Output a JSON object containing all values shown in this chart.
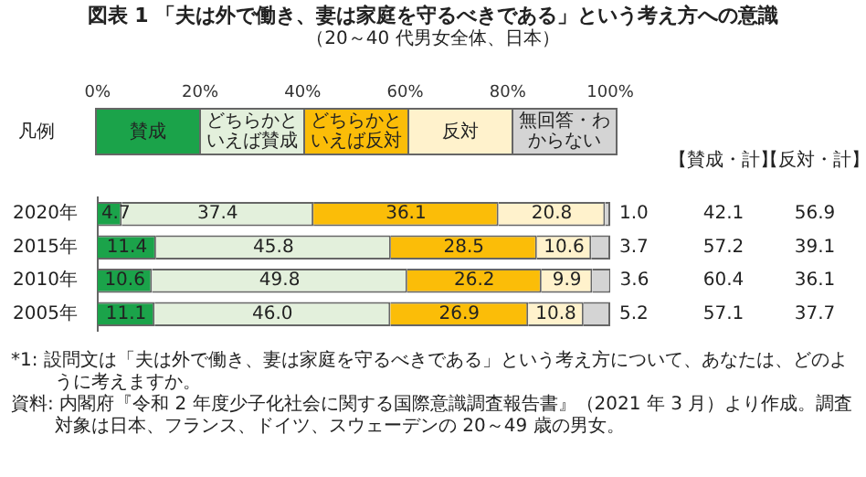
{
  "chart_data": {
    "type": "bar",
    "orientation": "horizontal",
    "stacked": true,
    "title": "図表 1 「夫は外で働き、妻は家庭を守るべきである」という考え方への意識",
    "subtitle": "（20～40 代男女全体、日本）",
    "categories": [
      "2020年",
      "2015年",
      "2010年",
      "2005年"
    ],
    "xlim": [
      0,
      100
    ],
    "xticks": [
      {
        "value": 0,
        "label": "0%"
      },
      {
        "value": 20,
        "label": "20%"
      },
      {
        "value": 40,
        "label": "40%"
      },
      {
        "value": 60,
        "label": "60%"
      },
      {
        "value": 80,
        "label": "80%"
      },
      {
        "value": 100,
        "label": "100%"
      }
    ],
    "legend": "top",
    "legend_title": "凡例",
    "series": [
      {
        "name": "賛成",
        "color": "#1ba34a",
        "values": [
          4.7,
          11.4,
          10.6,
          11.1
        ],
        "value_labels": [
          "4.7",
          "11.4",
          "10.6",
          "11.1"
        ]
      },
      {
        "name": "どちらかといえば賛成",
        "color": "#e3f0dc",
        "values": [
          37.4,
          45.8,
          49.8,
          46.0
        ],
        "value_labels": [
          "37.4",
          "45.8",
          "49.8",
          "46.0"
        ]
      },
      {
        "name": "どちらかといえば反対",
        "color": "#fbbd08",
        "values": [
          36.1,
          28.5,
          26.2,
          26.9
        ],
        "value_labels": [
          "36.1",
          "28.5",
          "26.2",
          "26.9"
        ]
      },
      {
        "name": "反対",
        "color": "#fff2cc",
        "values": [
          20.8,
          10.6,
          9.9,
          10.8
        ],
        "value_labels": [
          "20.8",
          "10.6",
          "9.9",
          "10.8"
        ]
      },
      {
        "name": "無回答・わからない",
        "color": "#d4d4d4",
        "values": [
          1.0,
          3.7,
          3.6,
          5.2
        ],
        "value_labels": [
          "1.0",
          "3.7",
          "3.6",
          "5.2"
        ]
      }
    ],
    "annotations": [
      "【賛成・計】",
      "【反対・計】",
      "42.1",
      "56.9",
      "57.2",
      "39.1",
      "60.4",
      "36.1",
      "57.1",
      "37.7",
      "*1: 設問文は「夫は外で働き、妻は家庭を守るべきである」という考え方について、あなたは、どのように考えますか。",
      "資料: 内閣府『令和 2 年度少子化社会に関する国際意識調査報告書』（2021 年 3 月）より作成。調査対象は日本、フランス、ドイツ、スウェーデンの 20～49 歳の男女。"
    ]
  }
}
